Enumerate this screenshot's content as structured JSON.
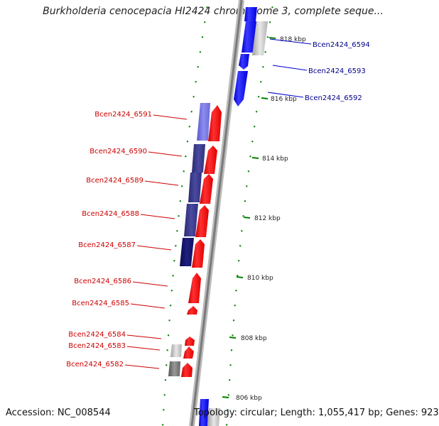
{
  "title": "Burkholderia cenocepacia HI2424 chromosome 3, complete seque...",
  "accession": "Accession: NC_008544",
  "summary": "Topology: circular; Length: 1,055,417 bp; Genes: 923",
  "colors": {
    "forward_gene": "#0000ff",
    "reverse_gene": "#ff0000",
    "forward_label": "#00008b",
    "reverse_label": "#cc0000",
    "tick": "#008000",
    "backbone": "#888888"
  },
  "ticks": [
    {
      "label": "818 kbp"
    },
    {
      "label": "816 kbp"
    },
    {
      "label": "814 kbp"
    },
    {
      "label": "812 kbp"
    },
    {
      "label": "810 kbp"
    },
    {
      "label": "808 kbp"
    },
    {
      "label": "806 kbp"
    }
  ],
  "forward_genes": [
    {
      "label": "Bcen2424_6594"
    },
    {
      "label": "Bcen2424_6593"
    },
    {
      "label": "Bcen2424_6592"
    }
  ],
  "reverse_genes": [
    {
      "label": "Bcen2424_6591"
    },
    {
      "label": "Bcen2424_6590"
    },
    {
      "label": "Bcen2424_6589"
    },
    {
      "label": "Bcen2424_6588"
    },
    {
      "label": "Bcen2424_6587"
    },
    {
      "label": "Bcen2424_6586"
    },
    {
      "label": "Bcen2424_6585"
    },
    {
      "label": "Bcen2424_6584"
    },
    {
      "label": "Bcen2424_6583"
    },
    {
      "label": "Bcen2424_6582"
    }
  ]
}
